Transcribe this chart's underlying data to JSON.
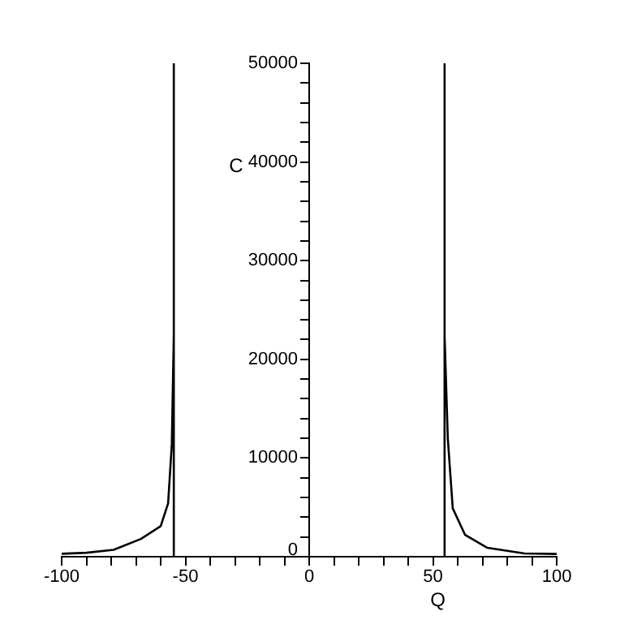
{
  "chart_data": {
    "type": "line",
    "xlabel": "Q",
    "ylabel": "C",
    "xlim": [
      -100,
      100
    ],
    "ylim": [
      0,
      50000
    ],
    "xticks": [
      -100,
      {
        "value": -90,
        "label": null
      },
      {
        "value": -80,
        "label": null
      },
      {
        "value": -70,
        "label": null
      },
      {
        "value": -60,
        "label": null
      },
      -50,
      {
        "value": -40,
        "label": null
      },
      {
        "value": -30,
        "label": null
      },
      {
        "value": -20,
        "label": null
      },
      {
        "value": -10,
        "label": null
      },
      0,
      {
        "value": 10,
        "label": null
      },
      {
        "value": 20,
        "label": null
      },
      {
        "value": 30,
        "label": null
      },
      {
        "value": 40,
        "label": null
      },
      50,
      {
        "value": 60,
        "label": null
      },
      {
        "value": 70,
        "label": null
      },
      {
        "value": 80,
        "label": null
      },
      {
        "value": 90,
        "label": null
      },
      100
    ],
    "yticks": [
      0,
      {
        "value": 2000,
        "label": null
      },
      {
        "value": 4000,
        "label": null
      },
      {
        "value": 6000,
        "label": null
      },
      {
        "value": 8000,
        "label": null
      },
      10000,
      {
        "value": 12000,
        "label": null
      },
      {
        "value": 14000,
        "label": null
      },
      {
        "value": 16000,
        "label": null
      },
      {
        "value": 18000,
        "label": null
      },
      20000,
      {
        "value": 22000,
        "label": null
      },
      {
        "value": 24000,
        "label": null
      },
      {
        "value": 26000,
        "label": null
      },
      {
        "value": 28000,
        "label": null
      },
      30000,
      {
        "value": 32000,
        "label": null
      },
      {
        "value": 34000,
        "label": null
      },
      {
        "value": 36000,
        "label": null
      },
      {
        "value": 38000,
        "label": null
      },
      40000,
      {
        "value": 42000,
        "label": null
      },
      {
        "value": 44000,
        "label": null
      },
      {
        "value": 46000,
        "label": null
      },
      {
        "value": 48000,
        "label": null
      },
      50000
    ],
    "grid": false,
    "legend": false,
    "series": [
      {
        "color": "#000000",
        "x": [
          -100,
          -90,
          -79,
          -68,
          -60,
          -57,
          -55.5,
          -54.7,
          -54.7,
          -54.7
        ],
        "values": [
          300,
          400,
          700,
          1800,
          3100,
          5400,
          11400,
          22400,
          50000,
          0
        ]
      },
      {
        "color": "#000000",
        "x": [
          54.7,
          54.7,
          54.7,
          56,
          58,
          63,
          72,
          87,
          100
        ],
        "values": [
          0,
          50000,
          22400,
          12000,
          4900,
          2200,
          900,
          330,
          280
        ]
      }
    ]
  }
}
